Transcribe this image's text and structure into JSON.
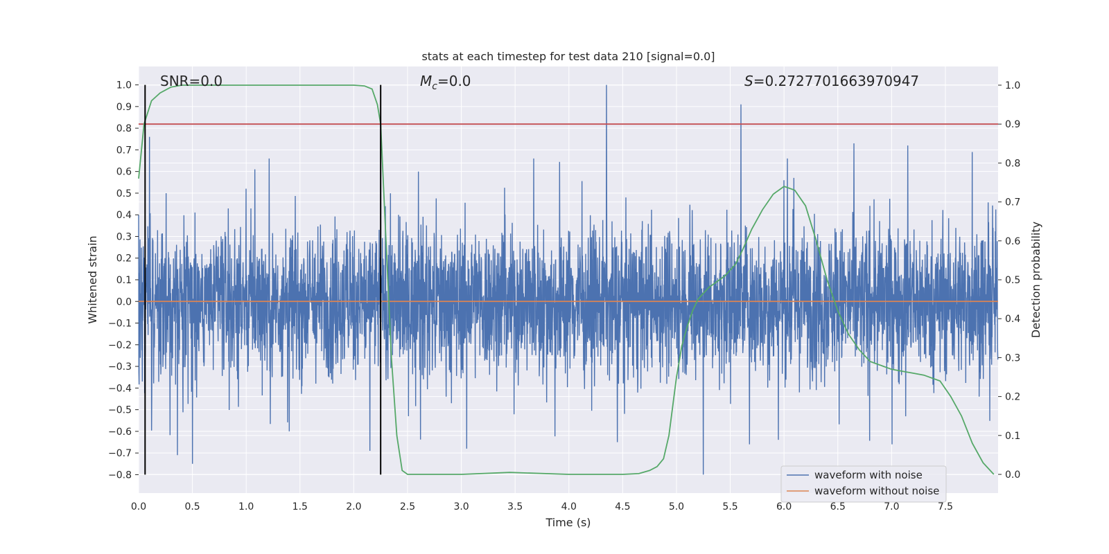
{
  "chart_data": {
    "type": "line",
    "title": "stats at each timestep for test data 210 [signal=0.0]",
    "xlabel": "Time (s)",
    "ylabel_left": "Whitened strain",
    "ylabel_right": "Detection probability",
    "xlim": [
      0.0,
      7.99
    ],
    "ylim_left": [
      -0.885,
      1.085
    ],
    "ylim_right": [
      -0.048,
      1.048
    ],
    "grid": true,
    "legend_position": "lower-right",
    "x_ticks": [
      "0.0",
      "0.5",
      "1.0",
      "1.5",
      "2.0",
      "2.5",
      "3.0",
      "3.5",
      "4.0",
      "4.5",
      "5.0",
      "5.5",
      "6.0",
      "6.5",
      "7.0",
      "7.5"
    ],
    "x_tick_values": [
      0.0,
      0.5,
      1.0,
      1.5,
      2.0,
      2.5,
      3.0,
      3.5,
      4.0,
      4.5,
      5.0,
      5.5,
      6.0,
      6.5,
      7.0,
      7.5
    ],
    "y_left_ticks": [
      "1.0",
      "0.9",
      "0.8",
      "0.7",
      "0.6",
      "0.5",
      "0.4",
      "0.3",
      "0.2",
      "0.1",
      "0.0",
      "−0.1",
      "−0.2",
      "−0.3",
      "−0.4",
      "−0.5",
      "−0.6",
      "−0.7",
      "−0.8"
    ],
    "y_left_tick_values": [
      1.0,
      0.9,
      0.8,
      0.7,
      0.6,
      0.5,
      0.4,
      0.3,
      0.2,
      0.1,
      0.0,
      -0.1,
      -0.2,
      -0.3,
      -0.4,
      -0.5,
      -0.6,
      -0.7,
      -0.8
    ],
    "y_right_ticks": [
      "1.0",
      "0.9",
      "0.8",
      "0.7",
      "0.6",
      "0.5",
      "0.4",
      "0.3",
      "0.2",
      "0.1",
      "0.0"
    ],
    "y_right_tick_values": [
      1.0,
      0.9,
      0.8,
      0.7,
      0.6,
      0.5,
      0.4,
      0.3,
      0.2,
      0.1,
      0.0
    ],
    "annotations": {
      "snr_label": "SNR=0.0",
      "mc_symbol": "M",
      "mc_subscript": "c",
      "mc_value": "=0.0",
      "s_symbol": "S",
      "s_value": "=0.2727701663970947"
    },
    "vertical_markers": [
      0.06,
      2.25
    ],
    "threshold": {
      "axis": "right",
      "value": 0.9
    },
    "series": [
      {
        "name": "waveform with noise",
        "axis": "left",
        "color": "#4c72b0",
        "envelope_note": "dense noise, approx. ±0.3 band with peaks to ±0.7",
        "peaks": [
          {
            "x": 0.1,
            "y": 0.76
          },
          {
            "x": 0.36,
            "y": -0.71
          },
          {
            "x": 0.5,
            "y": -0.75
          },
          {
            "x": 1.08,
            "y": 0.61
          },
          {
            "x": 1.4,
            "y": -0.6
          },
          {
            "x": 2.15,
            "y": -0.69
          },
          {
            "x": 2.6,
            "y": 0.6
          },
          {
            "x": 3.05,
            "y": -0.68
          },
          {
            "x": 4.35,
            "y": 1.0
          },
          {
            "x": 4.45,
            "y": -0.65
          },
          {
            "x": 5.25,
            "y": -0.8
          },
          {
            "x": 5.6,
            "y": 0.91
          },
          {
            "x": 6.0,
            "y": 0.56
          },
          {
            "x": 6.65,
            "y": 0.73
          },
          {
            "x": 7.15,
            "y": 0.72
          },
          {
            "x": 7.75,
            "y": 0.69
          }
        ]
      },
      {
        "name": "waveform without noise",
        "axis": "left",
        "color": "#dd8452",
        "x": [
          0.0,
          7.99
        ],
        "y": [
          0.0,
          0.0
        ]
      },
      {
        "name": "detection probability",
        "axis": "right",
        "color": "#55a868",
        "x": [
          0.0,
          0.05,
          0.12,
          0.2,
          0.3,
          0.4,
          0.5,
          1.0,
          1.5,
          2.0,
          2.1,
          2.17,
          2.22,
          2.25,
          2.3,
          2.35,
          2.4,
          2.45,
          2.5,
          2.6,
          3.0,
          3.45,
          4.0,
          4.5,
          4.65,
          4.75,
          4.82,
          4.88,
          4.93,
          5.0,
          5.05,
          5.1,
          5.15,
          5.2,
          5.3,
          5.45,
          5.55,
          5.62,
          5.7,
          5.8,
          5.9,
          6.0,
          6.1,
          6.2,
          6.3,
          6.4,
          6.5,
          6.6,
          6.7,
          6.8,
          6.9,
          7.0,
          7.1,
          7.2,
          7.3,
          7.45,
          7.55,
          7.65,
          7.75,
          7.85,
          7.95
        ],
        "y": [
          0.76,
          0.9,
          0.96,
          0.98,
          0.995,
          1.0,
          1.0,
          1.0,
          1.0,
          1.0,
          0.998,
          0.99,
          0.95,
          0.9,
          0.6,
          0.3,
          0.1,
          0.01,
          0.0,
          0.0,
          0.0,
          0.005,
          0.0,
          0.0,
          0.002,
          0.01,
          0.02,
          0.04,
          0.1,
          0.25,
          0.33,
          0.38,
          0.42,
          0.45,
          0.48,
          0.51,
          0.54,
          0.58,
          0.63,
          0.68,
          0.72,
          0.74,
          0.73,
          0.69,
          0.6,
          0.5,
          0.42,
          0.36,
          0.32,
          0.29,
          0.28,
          0.27,
          0.265,
          0.26,
          0.255,
          0.24,
          0.2,
          0.15,
          0.08,
          0.03,
          0.0
        ]
      }
    ]
  }
}
